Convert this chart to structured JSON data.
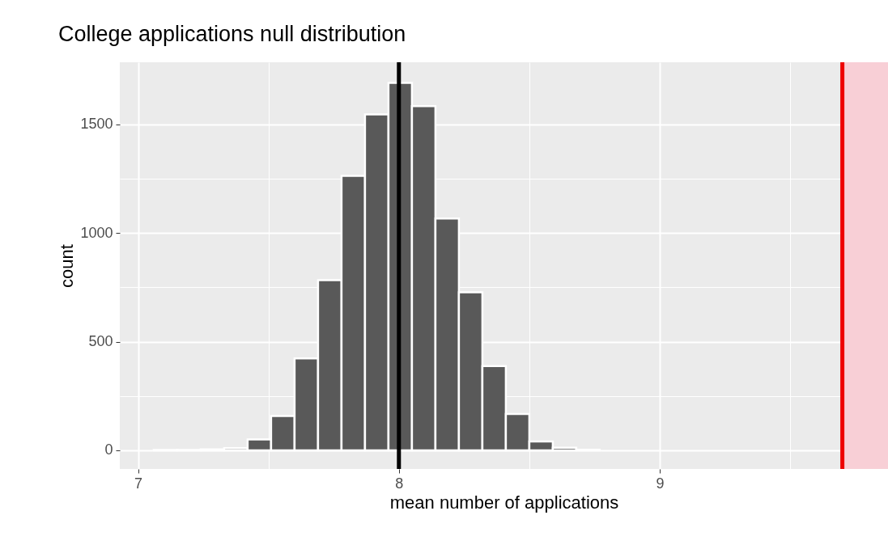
{
  "chart_data": {
    "type": "histogram",
    "title": "College applications null distribution",
    "xlabel": "mean number of applications",
    "ylabel": "count",
    "bins": [
      7.06,
      7.15,
      7.24,
      7.33,
      7.42,
      7.51,
      7.6,
      7.69,
      7.78,
      7.87,
      7.96,
      8.05,
      8.14,
      8.23,
      8.32,
      8.41,
      8.5,
      8.59,
      8.68,
      8.77
    ],
    "values": [
      1,
      1,
      4,
      10,
      50,
      158,
      423,
      783,
      1263,
      1546,
      1691,
      1584,
      1067,
      727,
      388,
      167,
      41,
      12,
      2
    ],
    "color": "#595959",
    "xlim": [
      6.93,
      9.875
    ],
    "ylim": [
      -86,
      1786
    ],
    "xticks": [
      7,
      {
        "value": 7.5,
        "label": null
      },
      8,
      {
        "value": 8.5,
        "label": null
      },
      9,
      {
        "value": 9.5,
        "label": null
      }
    ],
    "yticks": [
      0,
      {
        "value": 250,
        "label": null
      },
      500,
      {
        "value": 750,
        "label": null
      },
      1000,
      {
        "value": 1250,
        "label": null
      },
      1500
    ],
    "grid": true,
    "ref_lines": [
      {
        "axis": "x",
        "value": 8,
        "color": "#000000"
      },
      {
        "axis": "x",
        "value": 9.7,
        "color": "#ee0000"
      }
    ],
    "bands": [
      {
        "axis": "x",
        "from": 9.7,
        "to": 9.875,
        "color": "#f8cfd6"
      }
    ]
  }
}
